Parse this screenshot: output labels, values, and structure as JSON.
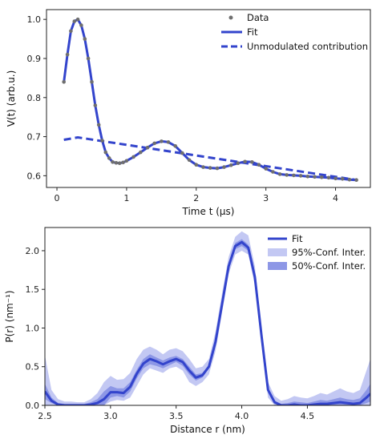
{
  "colors": {
    "fit": "#3344cc",
    "data": "#6f6f6f",
    "ci95": "#c3c8f3",
    "ci50": "#8d97e6",
    "axis": "#222222"
  },
  "chart_data": [
    {
      "type": "scatter",
      "panel": "top",
      "xlabel": "Time t (µs)",
      "ylabel": "V(t) (arb.u.)",
      "xlim": [
        -0.15,
        4.5
      ],
      "ylim": [
        0.57,
        1.025
      ],
      "xticks": [
        0,
        1,
        2,
        3,
        4
      ],
      "yticks": [
        0.6,
        0.7,
        0.8,
        0.9,
        1.0
      ],
      "legend_position": "top-right",
      "series": [
        {
          "name": "Data",
          "style": "dots",
          "x": [
            0.1,
            0.15,
            0.2,
            0.25,
            0.3,
            0.35,
            0.4,
            0.45,
            0.5,
            0.55,
            0.6,
            0.65,
            0.7,
            0.75,
            0.8,
            0.85,
            0.9,
            0.95,
            1.0,
            1.1,
            1.2,
            1.3,
            1.4,
            1.5,
            1.6,
            1.7,
            1.8,
            1.9,
            2.0,
            2.1,
            2.2,
            2.3,
            2.4,
            2.5,
            2.6,
            2.7,
            2.8,
            2.9,
            3.0,
            3.1,
            3.2,
            3.3,
            3.4,
            3.5,
            3.6,
            3.7,
            3.8,
            3.9,
            4.0,
            4.1,
            4.2,
            4.3
          ],
          "y": [
            0.84,
            0.91,
            0.97,
            0.995,
            1.0,
            0.985,
            0.95,
            0.9,
            0.84,
            0.78,
            0.73,
            0.69,
            0.66,
            0.645,
            0.635,
            0.633,
            0.632,
            0.634,
            0.638,
            0.648,
            0.66,
            0.672,
            0.683,
            0.688,
            0.686,
            0.676,
            0.658,
            0.64,
            0.628,
            0.622,
            0.62,
            0.619,
            0.622,
            0.627,
            0.632,
            0.636,
            0.635,
            0.628,
            0.618,
            0.61,
            0.604,
            0.602,
            0.601,
            0.6,
            0.598,
            0.597,
            0.596,
            0.595,
            0.593,
            0.592,
            0.59,
            0.589
          ]
        },
        {
          "name": "Fit",
          "style": "line",
          "x": [
            0.1,
            0.15,
            0.2,
            0.25,
            0.3,
            0.35,
            0.4,
            0.45,
            0.5,
            0.55,
            0.6,
            0.65,
            0.7,
            0.75,
            0.8,
            0.85,
            0.9,
            0.95,
            1.0,
            1.1,
            1.2,
            1.3,
            1.4,
            1.5,
            1.6,
            1.7,
            1.8,
            1.9,
            2.0,
            2.1,
            2.2,
            2.3,
            2.4,
            2.5,
            2.6,
            2.7,
            2.8,
            2.9,
            3.0,
            3.1,
            3.2,
            3.3,
            3.4,
            3.5,
            3.6,
            3.7,
            3.8,
            3.9,
            4.0,
            4.1,
            4.2,
            4.3
          ],
          "y": [
            0.84,
            0.91,
            0.97,
            0.995,
            1.0,
            0.985,
            0.95,
            0.9,
            0.84,
            0.78,
            0.73,
            0.69,
            0.66,
            0.645,
            0.635,
            0.633,
            0.632,
            0.634,
            0.638,
            0.648,
            0.66,
            0.672,
            0.683,
            0.688,
            0.686,
            0.676,
            0.658,
            0.64,
            0.628,
            0.622,
            0.62,
            0.619,
            0.622,
            0.627,
            0.632,
            0.636,
            0.635,
            0.628,
            0.618,
            0.61,
            0.604,
            0.602,
            0.601,
            0.6,
            0.598,
            0.597,
            0.596,
            0.595,
            0.593,
            0.592,
            0.59,
            0.589
          ]
        },
        {
          "name": "Unmodulated contribution",
          "style": "dashed",
          "x": [
            0.1,
            0.3,
            4.3
          ],
          "y": [
            0.692,
            0.698,
            0.589
          ]
        }
      ]
    },
    {
      "type": "area",
      "panel": "bottom",
      "xlabel": "Distance r (nm)",
      "ylabel": "P(r) (nm⁻¹)",
      "xlim": [
        2.5,
        4.98
      ],
      "ylim": [
        0,
        2.3
      ],
      "xticks": [
        2.5,
        3.0,
        3.5,
        4.0,
        4.5
      ],
      "yticks": [
        0.0,
        0.5,
        1.0,
        1.5,
        2.0
      ],
      "legend_position": "top-right",
      "x": [
        2.5,
        2.55,
        2.6,
        2.65,
        2.7,
        2.75,
        2.8,
        2.85,
        2.9,
        2.95,
        3.0,
        3.05,
        3.1,
        3.15,
        3.2,
        3.25,
        3.3,
        3.35,
        3.4,
        3.45,
        3.5,
        3.55,
        3.6,
        3.65,
        3.7,
        3.75,
        3.8,
        3.85,
        3.9,
        3.95,
        4.0,
        4.05,
        4.1,
        4.15,
        4.2,
        4.25,
        4.3,
        4.35,
        4.4,
        4.45,
        4.5,
        4.55,
        4.6,
        4.65,
        4.7,
        4.75,
        4.8,
        4.85,
        4.9,
        4.95,
        4.98
      ],
      "series": [
        {
          "name": "95%-Conf. Inter.",
          "lower": [
            0.0,
            0.0,
            0.0,
            0.0,
            0.0,
            0.0,
            0.0,
            0.0,
            0.0,
            0.0,
            0.05,
            0.07,
            0.06,
            0.1,
            0.25,
            0.4,
            0.48,
            0.45,
            0.42,
            0.48,
            0.5,
            0.45,
            0.3,
            0.25,
            0.3,
            0.4,
            0.7,
            1.2,
            1.7,
            1.95,
            2.0,
            1.95,
            1.55,
            0.8,
            0.1,
            0.0,
            0.0,
            0.0,
            0.0,
            0.0,
            0.0,
            0.0,
            0.0,
            0.0,
            0.0,
            0.0,
            0.0,
            0.0,
            0.0,
            0.0,
            0.0
          ],
          "upper": [
            0.65,
            0.2,
            0.08,
            0.05,
            0.05,
            0.04,
            0.04,
            0.08,
            0.16,
            0.3,
            0.38,
            0.33,
            0.34,
            0.42,
            0.6,
            0.72,
            0.76,
            0.72,
            0.66,
            0.72,
            0.74,
            0.7,
            0.6,
            0.48,
            0.5,
            0.6,
            0.95,
            1.45,
            1.92,
            2.18,
            2.25,
            2.2,
            1.8,
            1.0,
            0.3,
            0.12,
            0.06,
            0.08,
            0.12,
            0.1,
            0.09,
            0.12,
            0.16,
            0.14,
            0.18,
            0.22,
            0.18,
            0.16,
            0.2,
            0.45,
            0.6
          ]
        },
        {
          "name": "50%-Conf. Inter.",
          "lower": [
            0.08,
            0.03,
            0.0,
            0.0,
            0.0,
            0.0,
            0.0,
            0.0,
            0.0,
            0.0,
            0.1,
            0.12,
            0.1,
            0.18,
            0.35,
            0.48,
            0.53,
            0.51,
            0.48,
            0.52,
            0.56,
            0.51,
            0.4,
            0.32,
            0.36,
            0.48,
            0.78,
            1.27,
            1.76,
            2.02,
            2.06,
            2.0,
            1.62,
            0.88,
            0.17,
            0.02,
            0.0,
            0.0,
            0.0,
            0.0,
            0.0,
            0.0,
            0.0,
            0.0,
            0.0,
            0.0,
            0.0,
            0.0,
            0.0,
            0.03,
            0.05
          ],
          "upper": [
            0.28,
            0.1,
            0.03,
            0.02,
            0.02,
            0.02,
            0.02,
            0.04,
            0.08,
            0.18,
            0.25,
            0.22,
            0.22,
            0.3,
            0.46,
            0.6,
            0.66,
            0.62,
            0.58,
            0.62,
            0.64,
            0.6,
            0.5,
            0.4,
            0.42,
            0.52,
            0.86,
            1.35,
            1.84,
            2.1,
            2.15,
            2.08,
            1.7,
            0.94,
            0.22,
            0.06,
            0.02,
            0.03,
            0.05,
            0.04,
            0.03,
            0.05,
            0.07,
            0.06,
            0.08,
            0.1,
            0.08,
            0.07,
            0.09,
            0.2,
            0.28
          ]
        },
        {
          "name": "Fit",
          "values": [
            0.18,
            0.06,
            0.01,
            0.0,
            0.0,
            0.0,
            0.0,
            0.01,
            0.03,
            0.08,
            0.17,
            0.17,
            0.16,
            0.24,
            0.41,
            0.54,
            0.6,
            0.57,
            0.53,
            0.57,
            0.6,
            0.56,
            0.45,
            0.36,
            0.39,
            0.5,
            0.82,
            1.31,
            1.8,
            2.06,
            2.11,
            2.04,
            1.66,
            0.91,
            0.2,
            0.04,
            0.0,
            0.0,
            0.01,
            0.0,
            0.0,
            0.01,
            0.02,
            0.02,
            0.03,
            0.04,
            0.03,
            0.02,
            0.03,
            0.1,
            0.15
          ]
        }
      ]
    }
  ]
}
